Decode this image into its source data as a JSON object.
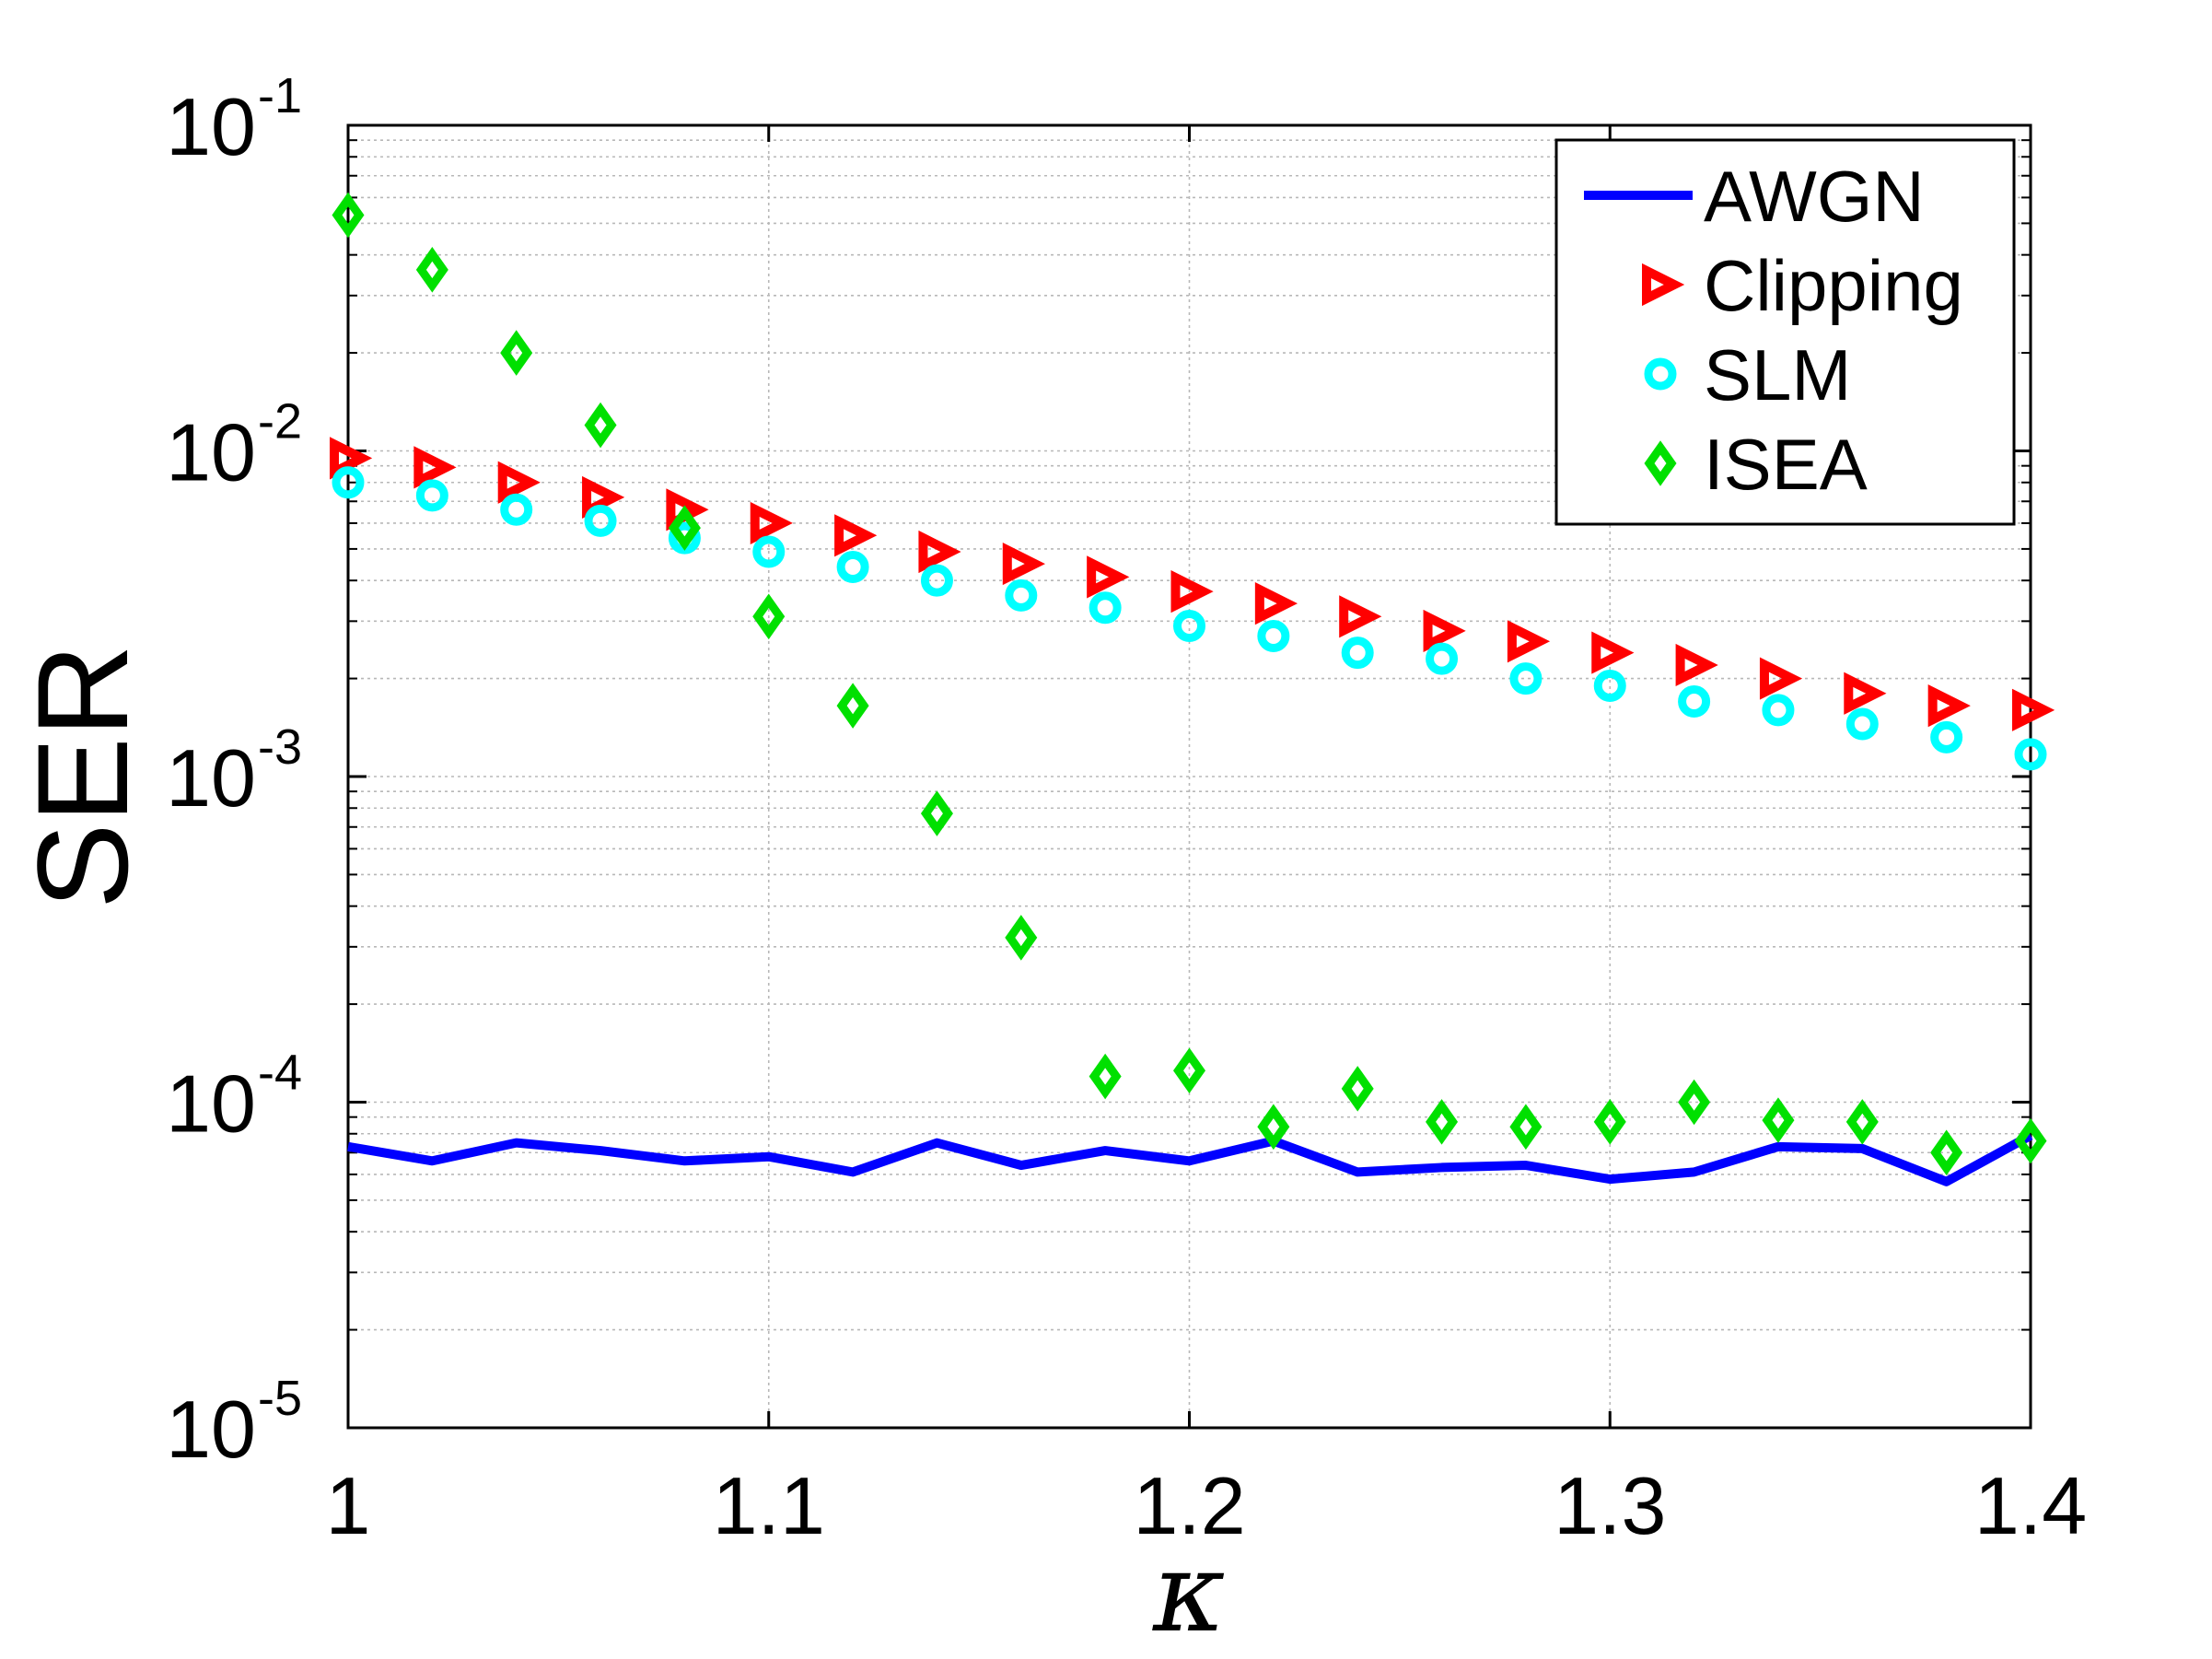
{
  "chart_data": {
    "type": "line",
    "xlabel": "κ",
    "ylabel": "SER",
    "xlim": [
      1,
      1.4
    ],
    "ylim": [
      1e-05,
      0.1
    ],
    "yscale": "log",
    "grid": true,
    "legend_position": "top-right",
    "x_ticks": [
      1,
      1.1,
      1.2,
      1.3,
      1.4
    ],
    "x_tick_labels": [
      "1",
      "1.1",
      "1.2",
      "1.3",
      "1.4"
    ],
    "y_ticks": [
      1e-05,
      0.0001,
      0.001,
      0.01,
      0.1
    ],
    "y_tick_base": "10",
    "y_tick_exponents": [
      "-5",
      "-4",
      "-3",
      "-2",
      "-1"
    ],
    "x": [
      1.0,
      1.02,
      1.04,
      1.06,
      1.08,
      1.1,
      1.12,
      1.14,
      1.16,
      1.18,
      1.2,
      1.22,
      1.24,
      1.26,
      1.28,
      1.3,
      1.32,
      1.34,
      1.36,
      1.38,
      1.4
    ],
    "series": [
      {
        "name": "AWGN",
        "style": "line",
        "color": "#0000ff",
        "values": [
          7.3e-05,
          6.6e-05,
          7.5e-05,
          7.1e-05,
          6.6e-05,
          6.8e-05,
          6.1e-05,
          7.5e-05,
          6.4e-05,
          7.1e-05,
          6.6e-05,
          7.6e-05,
          6.1e-05,
          6.3e-05,
          6.4e-05,
          5.8e-05,
          6.1e-05,
          7.3e-05,
          7.2e-05,
          5.7e-05,
          7.9e-05
        ]
      },
      {
        "name": "Clipping",
        "style": "marker",
        "marker": "triangle-right",
        "color": "#ff0000",
        "values": [
          0.0095,
          0.0089,
          0.008,
          0.0072,
          0.0066,
          0.006,
          0.0055,
          0.0049,
          0.0045,
          0.0041,
          0.0037,
          0.0034,
          0.0031,
          0.0028,
          0.0026,
          0.0024,
          0.0022,
          0.002,
          0.0018,
          0.00165,
          0.0016
        ]
      },
      {
        "name": "SLM",
        "style": "marker",
        "marker": "circle",
        "color": "#00ffff",
        "values": [
          0.008,
          0.0073,
          0.0066,
          0.0061,
          0.0054,
          0.0049,
          0.0044,
          0.004,
          0.0036,
          0.0033,
          0.0029,
          0.0027,
          0.0024,
          0.0023,
          0.002,
          0.0019,
          0.0017,
          0.0016,
          0.00145,
          0.00132,
          0.00117
        ]
      },
      {
        "name": "ISEA",
        "style": "marker",
        "marker": "diamond",
        "color": "#00e000",
        "values": [
          0.053,
          0.036,
          0.02,
          0.012,
          0.0058,
          0.0031,
          0.00165,
          0.00077,
          0.00032,
          0.00012,
          0.000125,
          8.4e-05,
          0.00011,
          8.7e-05,
          8.4e-05,
          8.7e-05,
          0.0001,
          8.8e-05,
          8.7e-05,
          7e-05,
          7.6e-05
        ]
      }
    ]
  }
}
